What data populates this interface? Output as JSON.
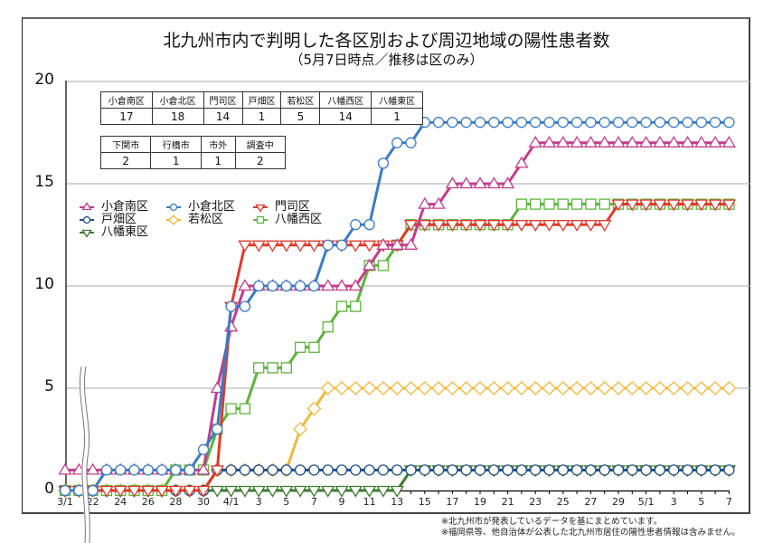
{
  "title": "北九州市内で判明した各区別および周辺地域の陽性患者数",
  "subtitle": "（5月7日時点／推移は区のみ）",
  "summary_table_1": {
    "headers": [
      "小倉南区",
      "小倉北区",
      "門司区",
      "戸畑区",
      "若松区",
      "八幡西区",
      "八幡東区"
    ],
    "values": [
      "17",
      "18",
      "14",
      "1",
      "5",
      "14",
      "1"
    ]
  },
  "summary_table_2": {
    "headers": [
      "下関市",
      "行橋市",
      "市外",
      "調査中"
    ],
    "values": [
      "2",
      "1",
      "1",
      "2"
    ]
  },
  "footnotes": [
    "※北九州市が発表しているデータを基にまとめています。",
    "※福岡県等、他自治体が公表した北九州市居住の陽性患者情報は含みません。"
  ],
  "chart_data": {
    "type": "line",
    "title": "北九州市内で判明した各区別および周辺地域の陽性患者数",
    "subtitle": "（5月7日時点／推移は区のみ）",
    "xlabel": "",
    "ylabel": "",
    "ylim": [
      0,
      20
    ],
    "yticks": [
      0,
      5,
      10,
      15,
      20
    ],
    "grid": "horizontal",
    "axis_break_after": "3/1",
    "legend_position": "upper-left inside",
    "x": [
      "3/1",
      "3/21",
      "3/22",
      "3/23",
      "3/24",
      "3/25",
      "3/26",
      "3/27",
      "3/28",
      "3/29",
      "3/30",
      "3/31",
      "4/1",
      "4/2",
      "4/3",
      "4/4",
      "4/5",
      "4/6",
      "4/7",
      "4/8",
      "4/9",
      "4/10",
      "4/11",
      "4/12",
      "4/13",
      "4/14",
      "4/15",
      "4/16",
      "4/17",
      "4/18",
      "4/19",
      "4/20",
      "4/21",
      "4/22",
      "4/23",
      "4/24",
      "4/25",
      "4/26",
      "4/27",
      "4/28",
      "4/29",
      "4/30",
      "5/1",
      "5/2",
      "5/3",
      "5/4",
      "5/5",
      "5/6",
      "5/7"
    ],
    "xtick_labels": [
      {
        "i": 0,
        "label": "3/1"
      },
      {
        "i": 2,
        "label": "22"
      },
      {
        "i": 4,
        "label": "24"
      },
      {
        "i": 6,
        "label": "26"
      },
      {
        "i": 8,
        "label": "28"
      },
      {
        "i": 10,
        "label": "30"
      },
      {
        "i": 12,
        "label": "4/1"
      },
      {
        "i": 14,
        "label": "3"
      },
      {
        "i": 16,
        "label": "5"
      },
      {
        "i": 18,
        "label": "7"
      },
      {
        "i": 20,
        "label": "9"
      },
      {
        "i": 22,
        "label": "11"
      },
      {
        "i": 24,
        "label": "13"
      },
      {
        "i": 26,
        "label": "15"
      },
      {
        "i": 28,
        "label": "17"
      },
      {
        "i": 30,
        "label": "19"
      },
      {
        "i": 32,
        "label": "21"
      },
      {
        "i": 34,
        "label": "23"
      },
      {
        "i": 36,
        "label": "25"
      },
      {
        "i": 38,
        "label": "27"
      },
      {
        "i": 40,
        "label": "29"
      },
      {
        "i": 42,
        "label": "5/1"
      },
      {
        "i": 44,
        "label": "3"
      },
      {
        "i": 46,
        "label": "5"
      },
      {
        "i": 48,
        "label": "7"
      }
    ],
    "series": [
      {
        "name": "若松区",
        "color": "#f0b93a",
        "marker": "diamond",
        "values": [
          0,
          0,
          0,
          0,
          0,
          0,
          0,
          0,
          0,
          0,
          0,
          1,
          1,
          1,
          1,
          1,
          1,
          3,
          4,
          5,
          5,
          5,
          5,
          5,
          5,
          5,
          5,
          5,
          5,
          5,
          5,
          5,
          5,
          5,
          5,
          5,
          5,
          5,
          5,
          5,
          5,
          5,
          5,
          5,
          5,
          5,
          5,
          5,
          5
        ]
      },
      {
        "name": "八幡東区",
        "color": "#3a7d2c",
        "marker": "triangle-down",
        "values": [
          0,
          0,
          0,
          0,
          0,
          0,
          0,
          0,
          0,
          0,
          0,
          0,
          0,
          0,
          0,
          0,
          0,
          0,
          0,
          0,
          0,
          0,
          0,
          0,
          0,
          1,
          1,
          1,
          1,
          1,
          1,
          1,
          1,
          1,
          1,
          1,
          1,
          1,
          1,
          1,
          1,
          1,
          1,
          1,
          1,
          1,
          1,
          1,
          1
        ]
      },
      {
        "name": "戸畑区",
        "color": "#1f4e86",
        "marker": "circle",
        "values": [
          0,
          0,
          0,
          0,
          0,
          0,
          0,
          0,
          0,
          0,
          0,
          1,
          1,
          1,
          1,
          1,
          1,
          1,
          1,
          1,
          1,
          1,
          1,
          1,
          1,
          1,
          1,
          1,
          1,
          1,
          1,
          1,
          1,
          1,
          1,
          1,
          1,
          1,
          1,
          1,
          1,
          1,
          1,
          1,
          1,
          1,
          1,
          1,
          1
        ]
      },
      {
        "name": "八幡西区",
        "color": "#5cb53a",
        "marker": "square",
        "values": [
          0,
          0,
          0,
          0,
          0,
          0,
          0,
          0,
          1,
          1,
          1,
          3,
          4,
          4,
          6,
          6,
          6,
          7,
          7,
          8,
          9,
          9,
          11,
          11,
          12,
          13,
          13,
          13,
          13,
          13,
          13,
          13,
          13,
          14,
          14,
          14,
          14,
          14,
          14,
          14,
          14,
          14,
          14,
          14,
          14,
          14,
          14,
          14,
          14
        ]
      },
      {
        "name": "門司区",
        "color": "#e03a2a",
        "marker": "triangle-down",
        "values": [
          0,
          0,
          0,
          0,
          0,
          0,
          0,
          0,
          0,
          0,
          0,
          1,
          9,
          12,
          12,
          12,
          12,
          12,
          12,
          12,
          12,
          12,
          12,
          12,
          12,
          13,
          13,
          13,
          13,
          13,
          13,
          13,
          13,
          13,
          13,
          13,
          13,
          13,
          13,
          13,
          14,
          14,
          14,
          14,
          14,
          14,
          14,
          14,
          14
        ]
      },
      {
        "name": "小倉南区",
        "color": "#c43c8e",
        "marker": "triangle-up",
        "values": [
          1,
          1,
          1,
          1,
          1,
          1,
          1,
          1,
          1,
          1,
          1,
          5,
          8,
          10,
          10,
          10,
          10,
          10,
          10,
          10,
          10,
          10,
          11,
          12,
          12,
          12,
          14,
          14,
          15,
          15,
          15,
          15,
          15,
          16,
          17,
          17,
          17,
          17,
          17,
          17,
          17,
          17,
          17,
          17,
          17,
          17,
          17,
          17,
          17
        ]
      },
      {
        "name": "小倉北区",
        "color": "#3a7cc6",
        "marker": "circle",
        "values": [
          0,
          0,
          0,
          1,
          1,
          1,
          1,
          1,
          1,
          1,
          2,
          3,
          9,
          9,
          10,
          10,
          10,
          10,
          10,
          12,
          12,
          13,
          13,
          16,
          17,
          17,
          18,
          18,
          18,
          18,
          18,
          18,
          18,
          18,
          18,
          18,
          18,
          18,
          18,
          18,
          18,
          18,
          18,
          18,
          18,
          18,
          18,
          18,
          18
        ]
      }
    ],
    "legend": [
      {
        "name": "小倉南区",
        "color": "#c43c8e",
        "marker": "triangle-up"
      },
      {
        "name": "小倉北区",
        "color": "#3a7cc6",
        "marker": "circle"
      },
      {
        "name": "門司区",
        "color": "#e03a2a",
        "marker": "triangle-down"
      },
      {
        "name": "戸畑区",
        "color": "#1f4e86",
        "marker": "circle"
      },
      {
        "name": "若松区",
        "color": "#f0b93a",
        "marker": "diamond"
      },
      {
        "name": "八幡西区",
        "color": "#5cb53a",
        "marker": "square"
      },
      {
        "name": "八幡東区",
        "color": "#3a7d2c",
        "marker": "triangle-down"
      }
    ]
  }
}
